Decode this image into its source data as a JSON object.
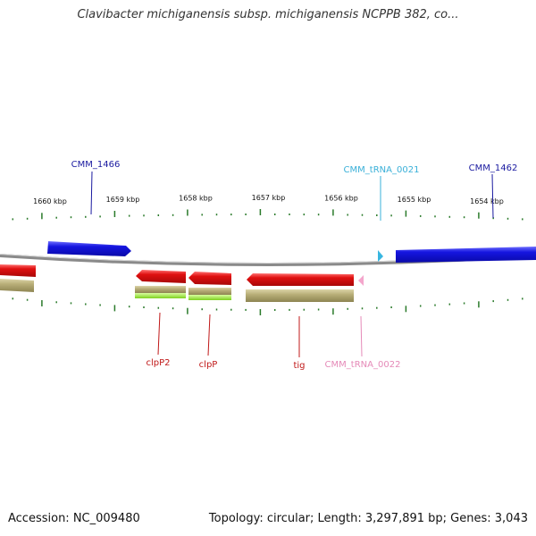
{
  "title": "Clavibacter michiganensis subsp. michiganensis NCPPB 382, co...",
  "footer": {
    "accession": "Accession: NC_009480",
    "summary": "Topology: circular; Length: 3,297,891 bp; Genes: 3,043"
  },
  "colors": {
    "forward_gene": "#1515e0",
    "reverse_gene": "#e01010",
    "trna_forward": "#38b6e0",
    "trna_reverse": "#f4a6cc",
    "cds_band": "#b8ae78",
    "cds_band_highlight": "#9ce83c",
    "tick": "#2a7a2a",
    "backbone": "#8a8a8a",
    "label_forward": "#1a1aa0",
    "label_reverse": "#c01818",
    "label_trna_forward": "#3ab0d8",
    "label_trna_reverse": "#e58ab8"
  },
  "scale": {
    "ticks": [
      {
        "label": "1660 kbp",
        "kbp": 1660
      },
      {
        "label": "1659 kbp",
        "kbp": 1659
      },
      {
        "label": "1658 kbp",
        "kbp": 1658
      },
      {
        "label": "1657 kbp",
        "kbp": 1657
      },
      {
        "label": "1656 kbp",
        "kbp": 1656
      },
      {
        "label": "1655 kbp",
        "kbp": 1655
      },
      {
        "label": "1654 kbp",
        "kbp": 1654
      }
    ]
  },
  "features": [
    {
      "label": "CMM_1466",
      "strand": "forward",
      "type": "gene"
    },
    {
      "label": "CMM_tRNA_0021",
      "strand": "forward",
      "type": "tRNA"
    },
    {
      "label": "CMM_1462",
      "strand": "forward",
      "type": "gene"
    },
    {
      "label": "clpP2",
      "strand": "reverse",
      "type": "gene"
    },
    {
      "label": "clpP",
      "strand": "reverse",
      "type": "gene"
    },
    {
      "label": "tig",
      "strand": "reverse",
      "type": "gene"
    },
    {
      "label": "CMM_tRNA_0022",
      "strand": "reverse",
      "type": "tRNA"
    }
  ]
}
